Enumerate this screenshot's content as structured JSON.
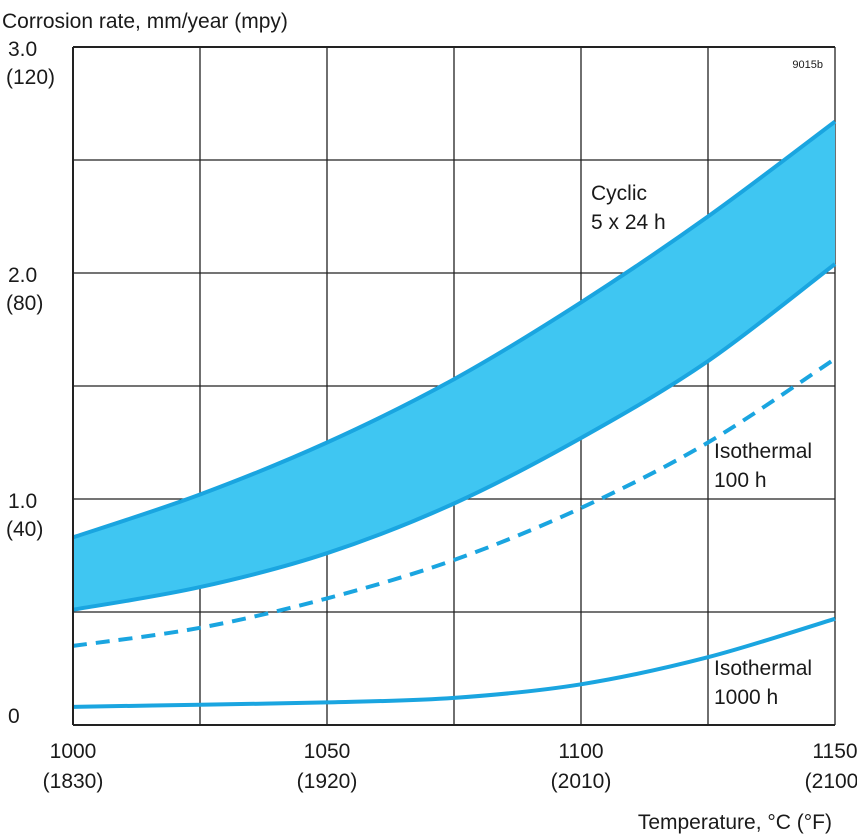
{
  "chart_data": {
    "type": "area",
    "ylabel": "Corrosion rate, mm/year (mpy)",
    "xlabel": "Temperature, °C (°F)",
    "figure_id": "9015b",
    "xlim": [
      1000,
      1150
    ],
    "ylim": [
      0,
      3.0
    ],
    "x_gridlines": [
      1000,
      1025,
      1050,
      1075,
      1100,
      1125,
      1150
    ],
    "y_gridlines": [
      0,
      0.5,
      1.0,
      1.5,
      2.0,
      2.5,
      3.0
    ],
    "grid": true,
    "x_ticks": [
      {
        "value": 1000,
        "label": "1000",
        "sublabel": "(1830)"
      },
      {
        "value": 1050,
        "label": "1050",
        "sublabel": "(1920)"
      },
      {
        "value": 1100,
        "label": "1100",
        "sublabel": "(2010)"
      },
      {
        "value": 1150,
        "label": "1150",
        "sublabel": "(2100)"
      }
    ],
    "y_ticks": [
      {
        "value": 0,
        "label": "0",
        "sublabel": ""
      },
      {
        "value": 1.0,
        "label": "1.0",
        "sublabel": "(40)"
      },
      {
        "value": 2.0,
        "label": "2.0",
        "sublabel": "(80)"
      },
      {
        "value": 3.0,
        "label": "3.0",
        "sublabel": "(120)"
      }
    ],
    "color": "#3fc6f2",
    "line_color": "#1aa5e0",
    "series": [
      {
        "name": "Cyclic 5 x 24 h",
        "kind": "band",
        "label_lines": [
          "Cyclic",
          "5 x 24 h"
        ],
        "x": [
          1000,
          1025,
          1050,
          1075,
          1100,
          1125,
          1150
        ],
        "upper": [
          0.83,
          1.02,
          1.25,
          1.53,
          1.87,
          2.25,
          2.67
        ],
        "lower": [
          0.51,
          0.61,
          0.76,
          0.98,
          1.27,
          1.61,
          2.04
        ]
      },
      {
        "name": "Isothermal 100 h",
        "kind": "dashed",
        "label_lines": [
          "Isothermal",
          "100 h"
        ],
        "x": [
          1000,
          1025,
          1050,
          1075,
          1100,
          1125,
          1150
        ],
        "y": [
          0.35,
          0.43,
          0.56,
          0.73,
          0.96,
          1.25,
          1.62
        ]
      },
      {
        "name": "Isothermal 1000 h",
        "kind": "solid",
        "label_lines": [
          "Isothermal",
          "1000 h"
        ],
        "x": [
          1000,
          1025,
          1050,
          1075,
          1100,
          1125,
          1150
        ],
        "y": [
          0.08,
          0.09,
          0.1,
          0.12,
          0.18,
          0.3,
          0.47
        ]
      }
    ]
  }
}
